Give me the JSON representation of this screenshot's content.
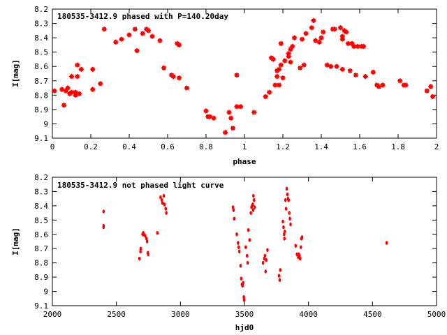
{
  "chart_data": [
    {
      "type": "scatter",
      "title": "180535-3412.9 phased with P=140.20day",
      "xlabel": "phase",
      "ylabel": "I[mag]",
      "xlim": [
        0,
        2
      ],
      "ylim": [
        9.1,
        8.2
      ],
      "y_inverted": true,
      "xticks": [
        "0",
        "0.2",
        "0.4",
        "0.6",
        "0.8",
        "1",
        "1.2",
        "1.4",
        "1.6",
        "1.8",
        "2"
      ],
      "yticks": [
        "8.2",
        "8.3",
        "8.4",
        "8.5",
        "8.6",
        "8.7",
        "8.8",
        "8.9",
        "9",
        "9.1"
      ],
      "marker_color": "#ff0000",
      "points": [
        [
          0.01,
          8.77
        ],
        [
          0.05,
          8.76
        ],
        [
          0.06,
          8.87
        ],
        [
          0.07,
          8.77
        ],
        [
          0.08,
          8.75
        ],
        [
          0.09,
          8.79
        ],
        [
          0.1,
          8.78
        ],
        [
          0.1,
          8.67
        ],
        [
          0.12,
          8.8
        ],
        [
          0.12,
          8.78
        ],
        [
          0.13,
          8.67
        ],
        [
          0.13,
          8.59
        ],
        [
          0.14,
          8.79
        ],
        [
          0.15,
          8.62
        ],
        [
          0.21,
          8.62
        ],
        [
          0.21,
          8.76
        ],
        [
          0.25,
          8.72
        ],
        [
          0.27,
          8.34
        ],
        [
          0.33,
          8.43
        ],
        [
          0.36,
          8.41
        ],
        [
          0.4,
          8.38
        ],
        [
          0.43,
          8.34
        ],
        [
          0.44,
          8.49
        ],
        [
          0.47,
          8.37
        ],
        [
          0.49,
          8.34
        ],
        [
          0.5,
          8.35
        ],
        [
          0.52,
          8.39
        ],
        [
          0.56,
          8.42
        ],
        [
          0.58,
          8.61
        ],
        [
          0.62,
          8.66
        ],
        [
          0.63,
          8.67
        ],
        [
          0.65,
          8.44
        ],
        [
          0.66,
          8.45
        ],
        [
          0.66,
          8.68
        ],
        [
          0.7,
          8.75
        ],
        [
          0.8,
          8.91
        ],
        [
          0.81,
          8.95
        ],
        [
          0.82,
          8.95
        ],
        [
          0.84,
          8.96
        ],
        [
          0.9,
          9.06
        ],
        [
          0.92,
          8.92
        ],
        [
          0.93,
          8.96
        ],
        [
          0.94,
          9.03
        ],
        [
          0.96,
          8.88
        ],
        [
          0.96,
          8.66
        ],
        [
          0.98,
          8.88
        ],
        [
          1.05,
          8.92
        ],
        [
          1.11,
          8.81
        ],
        [
          1.13,
          8.78
        ],
        [
          1.14,
          8.54
        ],
        [
          1.15,
          8.55
        ],
        [
          1.16,
          8.73
        ],
        [
          1.17,
          8.67
        ],
        [
          1.17,
          8.63
        ],
        [
          1.18,
          8.73
        ],
        [
          1.18,
          8.62
        ],
        [
          1.19,
          8.59
        ],
        [
          1.19,
          8.44
        ],
        [
          1.2,
          8.68
        ],
        [
          1.21,
          8.56
        ],
        [
          1.23,
          8.51
        ],
        [
          1.23,
          8.53
        ],
        [
          1.24,
          8.57
        ],
        [
          1.24,
          8.48
        ],
        [
          1.25,
          8.46
        ],
        [
          1.26,
          8.4
        ],
        [
          1.29,
          8.61
        ],
        [
          1.3,
          8.41
        ],
        [
          1.31,
          8.59
        ],
        [
          1.32,
          8.37
        ],
        [
          1.35,
          8.33
        ],
        [
          1.36,
          8.28
        ],
        [
          1.37,
          8.42
        ],
        [
          1.39,
          8.43
        ],
        [
          1.4,
          8.4
        ],
        [
          1.41,
          8.36
        ],
        [
          1.43,
          8.59
        ],
        [
          1.45,
          8.6
        ],
        [
          1.46,
          8.34
        ],
        [
          1.47,
          8.34
        ],
        [
          1.48,
          8.6
        ],
        [
          1.5,
          8.33
        ],
        [
          1.51,
          8.39
        ],
        [
          1.51,
          8.41
        ],
        [
          1.51,
          8.62
        ],
        [
          1.52,
          8.35
        ],
        [
          1.53,
          8.36
        ],
        [
          1.54,
          8.44
        ],
        [
          1.55,
          8.63
        ],
        [
          1.56,
          8.44
        ],
        [
          1.57,
          8.46
        ],
        [
          1.58,
          8.66
        ],
        [
          1.59,
          8.46
        ],
        [
          1.61,
          8.46
        ],
        [
          1.62,
          8.46
        ],
        [
          1.63,
          8.67
        ],
        [
          1.67,
          8.64
        ],
        [
          1.69,
          8.73
        ],
        [
          1.7,
          8.74
        ],
        [
          1.72,
          8.73
        ],
        [
          1.81,
          8.7
        ],
        [
          1.83,
          8.73
        ],
        [
          1.84,
          8.73
        ],
        [
          1.95,
          8.77
        ],
        [
          1.97,
          8.74
        ],
        [
          1.98,
          8.81
        ]
      ]
    },
    {
      "type": "scatter",
      "title": "180535-3412.9 not phased light curve",
      "xlabel": "hjd0",
      "ylabel": "I[mag]",
      "xlim": [
        2000,
        5000
      ],
      "ylim": [
        9.1,
        8.2
      ],
      "y_inverted": true,
      "xticks": [
        "2000",
        "2500",
        "3000",
        "3500",
        "4000",
        "4500",
        "5000"
      ],
      "yticks": [
        "8.2",
        "8.3",
        "8.4",
        "8.5",
        "8.6",
        "8.7",
        "8.8",
        "8.9",
        "9",
        "9.1"
      ],
      "marker_color": "#ff0000",
      "points": [
        [
          2400,
          8.44
        ],
        [
          2400,
          8.54
        ],
        [
          2400,
          8.55
        ],
        [
          2680,
          8.77
        ],
        [
          2688,
          8.72
        ],
        [
          2690,
          8.7
        ],
        [
          2705,
          8.6
        ],
        [
          2710,
          8.59
        ],
        [
          2715,
          8.6
        ],
        [
          2725,
          8.61
        ],
        [
          2735,
          8.63
        ],
        [
          2740,
          8.65
        ],
        [
          2745,
          8.73
        ],
        [
          2748,
          8.74
        ],
        [
          2820,
          8.59
        ],
        [
          2845,
          8.34
        ],
        [
          2855,
          8.36
        ],
        [
          2860,
          8.38
        ],
        [
          2870,
          8.33
        ],
        [
          2875,
          8.39
        ],
        [
          2885,
          8.42
        ],
        [
          2890,
          8.45
        ],
        [
          3410,
          8.41
        ],
        [
          3415,
          8.43
        ],
        [
          3420,
          8.49
        ],
        [
          3440,
          8.6
        ],
        [
          3450,
          8.66
        ],
        [
          3455,
          8.69
        ],
        [
          3460,
          8.72
        ],
        [
          3470,
          8.82
        ],
        [
          3475,
          8.91
        ],
        [
          3480,
          8.95
        ],
        [
          3485,
          8.96
        ],
        [
          3490,
          8.94
        ],
        [
          3495,
          9.04
        ],
        [
          3497,
          9.06
        ],
        [
          3510,
          8.69
        ],
        [
          3520,
          8.75
        ],
        [
          3525,
          8.8
        ],
        [
          3530,
          8.57
        ],
        [
          3540,
          8.64
        ],
        [
          3550,
          8.45
        ],
        [
          3555,
          8.41
        ],
        [
          3560,
          8.4
        ],
        [
          3565,
          8.39
        ],
        [
          3568,
          8.43
        ],
        [
          3570,
          8.33
        ],
        [
          3575,
          8.36
        ],
        [
          3580,
          8.41
        ],
        [
          3645,
          8.8
        ],
        [
          3655,
          8.77
        ],
        [
          3660,
          8.75
        ],
        [
          3665,
          8.86
        ],
        [
          3670,
          8.78
        ],
        [
          3680,
          8.71
        ],
        [
          3770,
          8.89
        ],
        [
          3775,
          8.92
        ],
        [
          3780,
          8.85
        ],
        [
          3800,
          8.51
        ],
        [
          3805,
          8.55
        ],
        [
          3810,
          8.6
        ],
        [
          3812,
          8.63
        ],
        [
          3815,
          8.58
        ],
        [
          3820,
          8.36
        ],
        [
          3825,
          8.42
        ],
        [
          3830,
          8.28
        ],
        [
          3835,
          8.32
        ],
        [
          3840,
          8.35
        ],
        [
          3845,
          8.36
        ],
        [
          3850,
          8.45
        ],
        [
          3855,
          8.49
        ],
        [
          3860,
          8.53
        ],
        [
          3900,
          8.68
        ],
        [
          3910,
          8.74
        ],
        [
          3920,
          8.76
        ],
        [
          3925,
          8.74
        ],
        [
          3930,
          8.75
        ],
        [
          3935,
          8.77
        ],
        [
          3940,
          8.69
        ],
        [
          3945,
          8.63
        ],
        [
          3950,
          8.62
        ],
        [
          4610,
          8.66
        ]
      ]
    }
  ]
}
